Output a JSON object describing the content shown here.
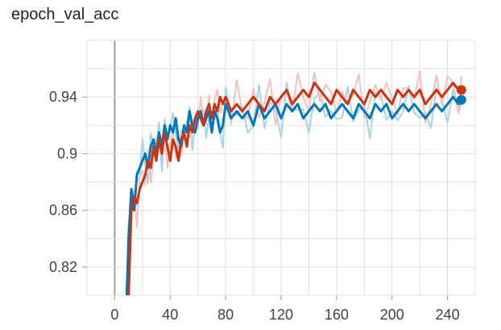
{
  "chart_data": {
    "type": "line",
    "title": "epoch_val_acc",
    "xlabel": "",
    "ylabel": "",
    "xlim": [
      -20,
      260
    ],
    "ylim": [
      0.8,
      0.98
    ],
    "x_ticks": [
      0,
      40,
      80,
      120,
      160,
      200,
      240
    ],
    "x_tick_labels": [
      "0",
      "40",
      "80",
      "120",
      "160",
      "200",
      "240"
    ],
    "y_ticks": [
      0.82,
      0.86,
      0.9,
      0.94
    ],
    "y_tick_labels": [
      "0.82",
      "0.86",
      "0.9",
      "0.94"
    ],
    "grid": true,
    "legend": "none",
    "series": [
      {
        "color": "#0077bb",
        "raw_color": "#a6d4ec",
        "x": [
          8,
          10,
          12,
          14,
          16,
          18,
          20,
          22,
          24,
          26,
          28,
          30,
          32,
          34,
          36,
          38,
          40,
          42,
          44,
          46,
          48,
          50,
          52,
          54,
          56,
          58,
          60,
          62,
          64,
          66,
          68,
          70,
          72,
          74,
          76,
          78,
          80,
          84,
          88,
          92,
          96,
          100,
          104,
          108,
          112,
          116,
          120,
          124,
          128,
          132,
          136,
          140,
          144,
          148,
          152,
          156,
          160,
          164,
          168,
          172,
          176,
          180,
          184,
          188,
          192,
          196,
          200,
          204,
          208,
          212,
          216,
          220,
          224,
          228,
          232,
          236,
          240,
          244,
          248,
          250
        ],
        "values": [
          0.78,
          0.84,
          0.875,
          0.86,
          0.885,
          0.89,
          0.895,
          0.9,
          0.89,
          0.905,
          0.91,
          0.9,
          0.915,
          0.905,
          0.92,
          0.91,
          0.92,
          0.915,
          0.925,
          0.91,
          0.905,
          0.92,
          0.915,
          0.93,
          0.92,
          0.915,
          0.925,
          0.93,
          0.92,
          0.925,
          0.93,
          0.915,
          0.93,
          0.925,
          0.915,
          0.92,
          0.935,
          0.925,
          0.93,
          0.925,
          0.93,
          0.92,
          0.935,
          0.925,
          0.93,
          0.935,
          0.925,
          0.935,
          0.93,
          0.935,
          0.925,
          0.93,
          0.935,
          0.93,
          0.935,
          0.925,
          0.93,
          0.935,
          0.93,
          0.925,
          0.935,
          0.93,
          0.925,
          0.935,
          0.93,
          0.935,
          0.925,
          0.93,
          0.935,
          0.93,
          0.935,
          0.93,
          0.925,
          0.93,
          0.935,
          0.93,
          0.935,
          0.94,
          0.935,
          0.938
        ]
      },
      {
        "color": "#cc3311",
        "raw_color": "#f4c2b8",
        "x": [
          8,
          10,
          12,
          14,
          16,
          18,
          20,
          22,
          24,
          26,
          28,
          30,
          32,
          34,
          36,
          38,
          40,
          42,
          44,
          46,
          48,
          50,
          52,
          54,
          56,
          58,
          60,
          62,
          64,
          66,
          68,
          70,
          72,
          74,
          76,
          78,
          80,
          84,
          88,
          92,
          96,
          100,
          104,
          108,
          112,
          116,
          120,
          124,
          128,
          132,
          136,
          140,
          144,
          148,
          152,
          156,
          160,
          164,
          168,
          172,
          176,
          180,
          184,
          188,
          192,
          196,
          200,
          204,
          208,
          212,
          216,
          220,
          224,
          228,
          232,
          236,
          240,
          244,
          248,
          250
        ],
        "values": [
          0.77,
          0.8,
          0.86,
          0.87,
          0.865,
          0.875,
          0.88,
          0.885,
          0.895,
          0.89,
          0.905,
          0.895,
          0.91,
          0.9,
          0.915,
          0.905,
          0.895,
          0.91,
          0.905,
          0.895,
          0.91,
          0.915,
          0.905,
          0.92,
          0.915,
          0.925,
          0.93,
          0.925,
          0.92,
          0.93,
          0.935,
          0.925,
          0.935,
          0.93,
          0.94,
          0.935,
          0.94,
          0.93,
          0.935,
          0.93,
          0.935,
          0.94,
          0.935,
          0.93,
          0.94,
          0.935,
          0.94,
          0.945,
          0.935,
          0.94,
          0.945,
          0.94,
          0.95,
          0.945,
          0.94,
          0.935,
          0.945,
          0.94,
          0.935,
          0.945,
          0.94,
          0.935,
          0.945,
          0.94,
          0.945,
          0.94,
          0.935,
          0.945,
          0.94,
          0.945,
          0.94,
          0.945,
          0.935,
          0.94,
          0.945,
          0.94,
          0.945,
          0.95,
          0.945,
          0.945
        ]
      }
    ]
  }
}
